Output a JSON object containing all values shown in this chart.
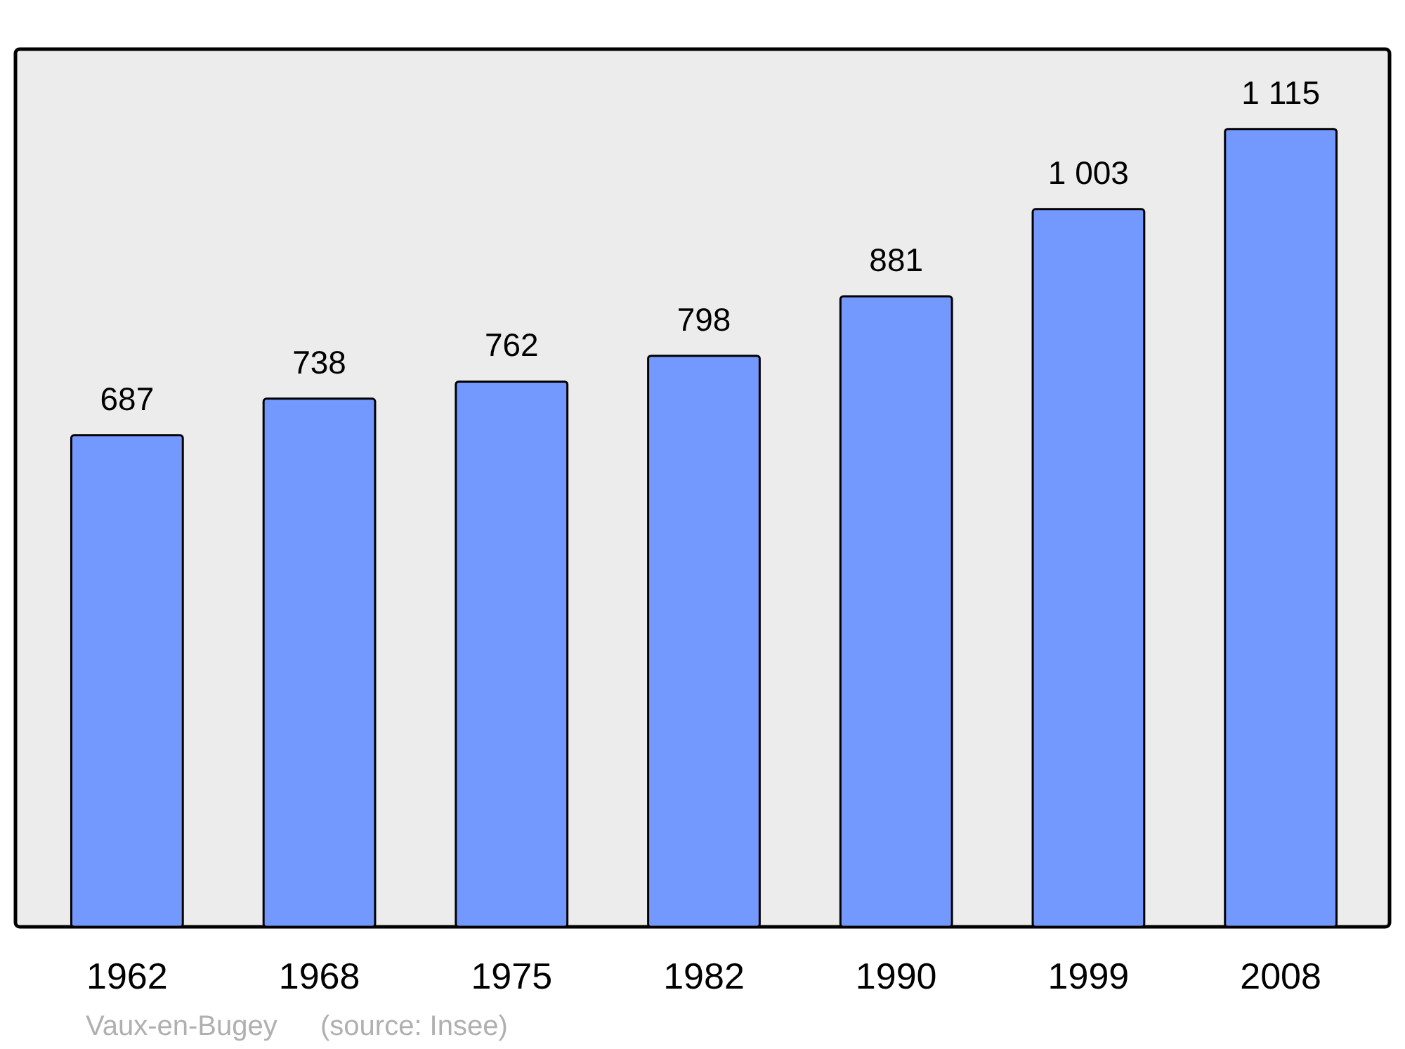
{
  "chart_data": {
    "type": "bar",
    "categories": [
      "1962",
      "1968",
      "1975",
      "1982",
      "1990",
      "1999",
      "2008"
    ],
    "values": [
      687,
      738,
      762,
      798,
      881,
      1003,
      1115
    ],
    "value_labels": [
      "687",
      "738",
      "762",
      "798",
      "881",
      "1 003",
      "1 115"
    ],
    "color": "#7399ff",
    "annotations": [
      "Vaux-en-Bugey",
      "(source: Insee)"
    ]
  }
}
